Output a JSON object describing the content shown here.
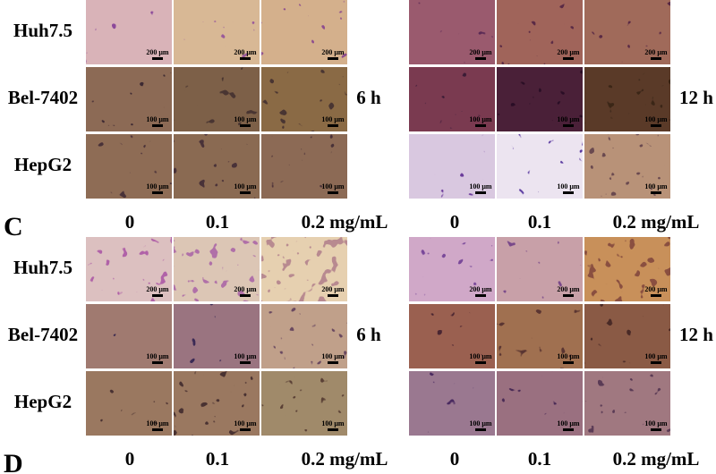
{
  "panels": [
    {
      "blocks": [
        {
          "time": "6 h",
          "concentrations": [
            "0",
            "0.1",
            "0.2 mg/mL"
          ],
          "rows": [
            {
              "label": "Huh7.5",
              "scale": "200 μm"
            },
            {
              "label": "Bel-7402",
              "scale": "100 μm"
            },
            {
              "label": "HepG2",
              "scale": "100 μm"
            }
          ]
        },
        {
          "time": "12 h",
          "concentrations": [
            "0",
            "0.1",
            "0.2 mg/mL"
          ],
          "rows": [
            {
              "scale": "200 μm"
            },
            {
              "scale": "100 μm"
            },
            {
              "scale": "100 μm"
            }
          ]
        }
      ],
      "letter": "C"
    },
    {
      "blocks": [
        {
          "time": "6 h",
          "concentrations": [
            "0",
            "0.1",
            "0.2 mg/mL"
          ],
          "rows": [
            {
              "label": "Huh7.5",
              "scale": "200 μm"
            },
            {
              "label": "Bel-7402",
              "scale": "100 μm"
            },
            {
              "label": "HepG2",
              "scale": "100 μm"
            }
          ]
        },
        {
          "time": "12 h",
          "concentrations": [
            "0",
            "0.1",
            "0.2 mg/mL"
          ],
          "rows": [
            {
              "scale": "200 μm"
            },
            {
              "scale": "100 μm"
            },
            {
              "scale": "100 μm"
            }
          ]
        }
      ],
      "letter": "D"
    }
  ]
}
